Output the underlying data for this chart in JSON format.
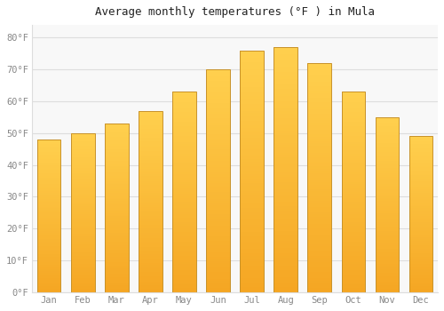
{
  "title": "Average monthly temperatures (°F ) in Mula",
  "months": [
    "Jan",
    "Feb",
    "Mar",
    "Apr",
    "May",
    "Jun",
    "Jul",
    "Aug",
    "Sep",
    "Oct",
    "Nov",
    "Dec"
  ],
  "values": [
    48,
    50,
    53,
    57,
    63,
    70,
    76,
    77,
    72,
    63,
    55,
    49
  ],
  "bar_color_bottom": "#F5A623",
  "bar_color_top": "#FFD04E",
  "bar_edge_color": "#C8922A",
  "background_color": "#FFFFFF",
  "plot_bg_color": "#F8F8F8",
  "grid_color": "#DDDDDD",
  "tick_color": "#888888",
  "title_color": "#222222",
  "ylabel_ticks": [
    "0°F",
    "10°F",
    "20°F",
    "30°F",
    "40°F",
    "50°F",
    "60°F",
    "70°F",
    "80°F"
  ],
  "ylim": [
    0,
    84
  ],
  "yticks": [
    0,
    10,
    20,
    30,
    40,
    50,
    60,
    70,
    80
  ],
  "bar_width": 0.7
}
